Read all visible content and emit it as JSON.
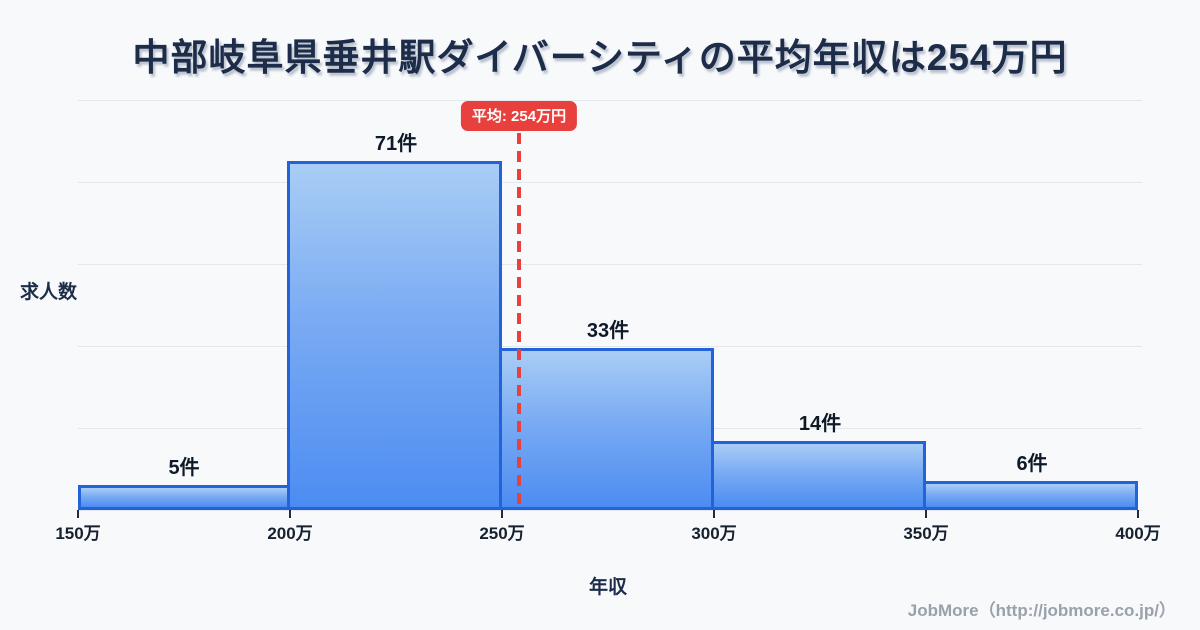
{
  "title": "中部岐阜県垂井駅ダイバーシティの平均年収は254万円",
  "y_axis_label": "求人数",
  "x_axis_label": "年収",
  "footer": "JobMore（http://jobmore.co.jp/）",
  "colors": {
    "background": "#f7f9fb",
    "title_text": "#1d2c48",
    "bar_fill_top": "#a9cdf5",
    "bar_fill_bottom": "#4c8cf2",
    "bar_border": "#2362d8",
    "gridline": "#e3e7ee",
    "average_line": "#e8403d",
    "badge_background": "#e8403d",
    "badge_text": "#ffffff",
    "tick_label_text": "#16202e",
    "bar_label_text": "#0f1a28",
    "footer_text": "#9aa1ab"
  },
  "chart_data": {
    "type": "bar",
    "subtype": "histogram",
    "title": "中部岐阜県垂井駅ダイバーシティの平均年収は254万円",
    "xlabel": "年収",
    "ylabel": "求人数",
    "bin_edges_values": [
      150,
      200,
      250,
      300,
      350,
      400
    ],
    "bin_edges_labels": [
      "150万",
      "200万",
      "250万",
      "300万",
      "350万",
      "400万"
    ],
    "values": [
      5,
      71,
      33,
      14,
      6
    ],
    "bar_labels": [
      "5件",
      "71件",
      "33件",
      "14件",
      "6件"
    ],
    "average_value": 254,
    "average_label": "平均: 254万円",
    "ylim": [
      0,
      83.4
    ],
    "grid": "horizontal",
    "gridline_count": 6,
    "legend": "none"
  }
}
